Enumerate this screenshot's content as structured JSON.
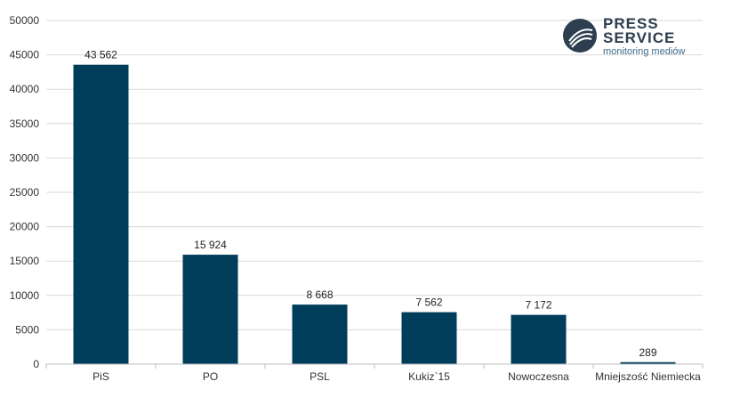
{
  "logo": {
    "line1": "PRESS",
    "line2": "SERVICE",
    "tagline": "monitoring mediów"
  },
  "colors": {
    "bar": "#003d5b",
    "grid": "#d9d9d9",
    "axis": "#bfbfbf",
    "logo_dark": "#2c3e50"
  },
  "chart_data": {
    "type": "bar",
    "categories": [
      "PiS",
      "PO",
      "PSL",
      "Kukiz`15",
      "Nowoczesna",
      "Mniejszość Niemiecka"
    ],
    "values": [
      43562,
      15924,
      8668,
      7562,
      7172,
      289
    ],
    "data_labels": [
      "43 562",
      "15 924",
      "8 668",
      "7 562",
      "7 172",
      "289"
    ],
    "y_ticks": [
      "0",
      "5000",
      "10000",
      "15000",
      "20000",
      "25000",
      "30000",
      "35000",
      "40000",
      "45000",
      "50000"
    ],
    "ylim": [
      0,
      50000
    ],
    "ytick_step": 5000,
    "grid": true,
    "legend": "none",
    "title": "",
    "xlabel": "",
    "ylabel": ""
  }
}
